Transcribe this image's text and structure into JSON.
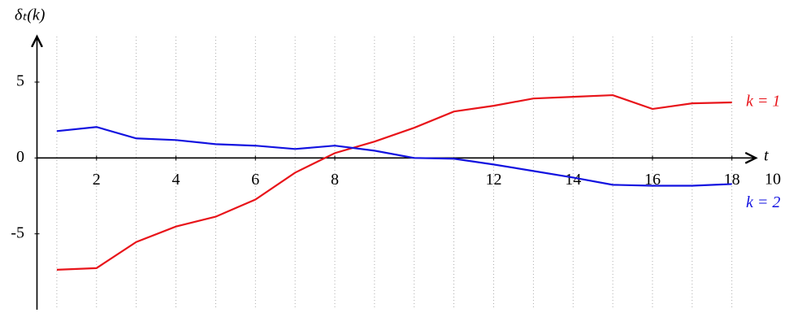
{
  "chart_data": {
    "type": "line",
    "y_label": "δₜ(k)",
    "x_label": "t",
    "annotations": [
      "10"
    ],
    "x": [
      1,
      2,
      3,
      4,
      5,
      6,
      7,
      8,
      9,
      10,
      11,
      12,
      13,
      14,
      15,
      16,
      17,
      18
    ],
    "series": [
      {
        "name": "k = 1",
        "color": "#e8141a",
        "values": [
          -7.37,
          -7.26,
          -5.54,
          -4.52,
          -3.87,
          -2.74,
          -0.97,
          0.32,
          1.08,
          1.99,
          3.06,
          3.44,
          3.92,
          4.03,
          4.14,
          3.23,
          3.6,
          3.66
        ]
      },
      {
        "name": "k = 2",
        "color": "#1212e0",
        "values": [
          1.77,
          2.04,
          1.29,
          1.18,
          0.91,
          0.81,
          0.59,
          0.81,
          0.48,
          0,
          -0.05,
          -0.43,
          -0.86,
          -1.29,
          -1.77,
          -1.83,
          -1.83,
          -1.72
        ]
      }
    ],
    "xlim": [
      0.5,
      18.6
    ],
    "ylim": [
      -10,
      8
    ],
    "xticks": [
      2,
      4,
      6,
      8,
      12,
      14,
      16,
      18
    ],
    "yticks": [
      -5,
      0,
      5
    ],
    "grid": true
  }
}
